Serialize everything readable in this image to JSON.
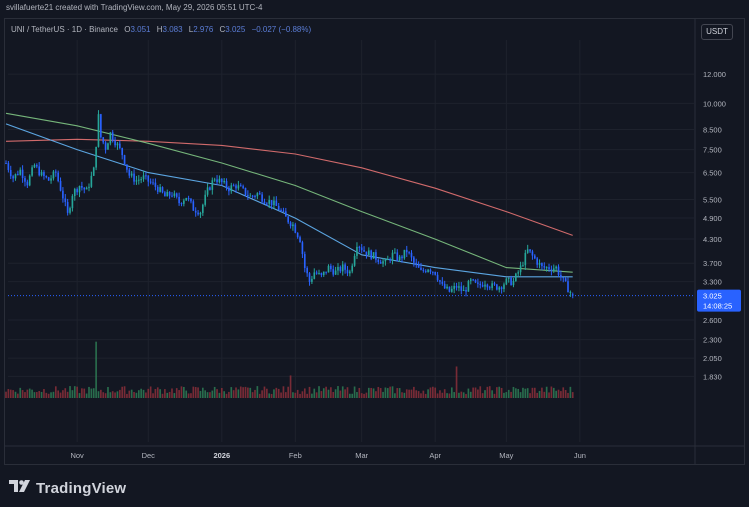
{
  "header": {
    "credit": "svillafuerte21 created with TradingView.com, May 29, 2026 05:51 UTC-4"
  },
  "legend": {
    "symbol": "UNI / TetherUS · 1D · Binance",
    "o_label": "O",
    "o_value": "3.051",
    "h_label": "H",
    "h_value": "3.083",
    "l_label": "L",
    "l_value": "2.976",
    "c_label": "C",
    "c_value": "3.025",
    "change": "−0.027 (−0.88%)"
  },
  "currency_button": "USDT",
  "brand": {
    "name": "TradingView",
    "logo_icon": "tradingview-logo-icon"
  },
  "colors": {
    "up": "#26a69a",
    "down": "#2962ff",
    "ma_long": "#e57373",
    "ma_mid": "#81c784",
    "ma_short": "#64b5f6",
    "vol_up": "#2e7d55",
    "vol_down": "#8b2f3a",
    "price_tag": "#2962ff",
    "countdown_tag": "#2962ff"
  },
  "chart_data": {
    "type": "candlestick",
    "symbol": "UNI / TetherUS",
    "interval": "1D",
    "exchange": "Binance",
    "y_scale": "log",
    "ylim": [
      1.6,
      14.2
    ],
    "y_ticks": [
      "12.000",
      "10.000",
      "8.500",
      "7.500",
      "6.500",
      "5.500",
      "4.900",
      "4.300",
      "3.700",
      "3.300",
      "2.600",
      "2.300",
      "2.050",
      "1.830"
    ],
    "x_ticks": [
      "Nov",
      "Dec",
      "2026",
      "Feb",
      "Mar",
      "Apr",
      "May",
      "Jun"
    ],
    "x_tick_dates": [
      "2025-11-01",
      "2025-12-01",
      "2026-01-01",
      "2026-02-01",
      "2026-03-01",
      "2026-04-01",
      "2026-05-01",
      "2026-06-01"
    ],
    "x_range": [
      "2025-10-02",
      "2026-07-01"
    ],
    "last_price": "3.025",
    "countdown": "14:08:25",
    "grid": true,
    "price_points": [
      [
        "2025-10-02",
        6.9
      ],
      [
        "2025-10-05",
        6.3
      ],
      [
        "2025-10-08",
        6.6
      ],
      [
        "2025-10-11",
        6.1
      ],
      [
        "2025-10-14",
        6.8
      ],
      [
        "2025-10-17",
        6.4
      ],
      [
        "2025-10-20",
        6.2
      ],
      [
        "2025-10-23",
        6.5
      ],
      [
        "2025-10-26",
        5.6
      ],
      [
        "2025-10-28",
        5.0
      ],
      [
        "2025-10-30",
        5.7
      ],
      [
        "2025-11-02",
        6.0
      ],
      [
        "2025-11-05",
        5.8
      ],
      [
        "2025-11-08",
        6.6
      ],
      [
        "2025-11-10",
        9.2
      ],
      [
        "2025-11-11",
        8.1
      ],
      [
        "2025-11-13",
        7.6
      ],
      [
        "2025-11-15",
        8.3
      ],
      [
        "2025-11-17",
        7.9
      ],
      [
        "2025-11-20",
        7.3
      ],
      [
        "2025-11-23",
        6.4
      ],
      [
        "2025-11-26",
        6.2
      ],
      [
        "2025-11-29",
        6.3
      ],
      [
        "2025-12-02",
        6.1
      ],
      [
        "2025-12-05",
        5.9
      ],
      [
        "2025-12-08",
        5.6
      ],
      [
        "2025-12-11",
        5.7
      ],
      [
        "2025-12-14",
        5.4
      ],
      [
        "2025-12-17",
        5.6
      ],
      [
        "2025-12-20",
        5.2
      ],
      [
        "2025-12-23",
        5.1
      ],
      [
        "2025-12-26",
        5.8
      ],
      [
        "2025-12-29",
        6.3
      ],
      [
        "2026-01-01",
        6.1
      ],
      [
        "2026-01-04",
        5.9
      ],
      [
        "2026-01-07",
        6.0
      ],
      [
        "2026-01-10",
        5.8
      ],
      [
        "2026-01-13",
        5.6
      ],
      [
        "2026-01-16",
        5.7
      ],
      [
        "2026-01-19",
        5.5
      ],
      [
        "2026-01-22",
        5.4
      ],
      [
        "2026-01-25",
        5.2
      ],
      [
        "2026-01-28",
        4.9
      ],
      [
        "2026-01-31",
        4.7
      ],
      [
        "2026-02-03",
        4.3
      ],
      [
        "2026-02-05",
        3.6
      ],
      [
        "2026-02-07",
        3.3
      ],
      [
        "2026-02-09",
        3.5
      ],
      [
        "2026-02-12",
        3.4
      ],
      [
        "2026-02-15",
        3.6
      ],
      [
        "2026-02-18",
        3.5
      ],
      [
        "2026-02-21",
        3.6
      ],
      [
        "2026-02-24",
        3.5
      ],
      [
        "2026-02-27",
        4.2
      ],
      [
        "2026-03-02",
        4.0
      ],
      [
        "2026-03-05",
        3.9
      ],
      [
        "2026-03-08",
        3.8
      ],
      [
        "2026-03-11",
        3.7
      ],
      [
        "2026-03-14",
        3.9
      ],
      [
        "2026-03-17",
        3.8
      ],
      [
        "2026-03-20",
        4.0
      ],
      [
        "2026-03-23",
        3.7
      ],
      [
        "2026-03-26",
        3.5
      ],
      [
        "2026-03-29",
        3.6
      ],
      [
        "2026-04-01",
        3.5
      ],
      [
        "2026-04-04",
        3.2
      ],
      [
        "2026-04-07",
        3.1
      ],
      [
        "2026-04-10",
        3.2
      ],
      [
        "2026-04-13",
        3.1
      ],
      [
        "2026-04-16",
        3.3
      ],
      [
        "2026-04-19",
        3.2
      ],
      [
        "2026-04-22",
        3.3
      ],
      [
        "2026-04-25",
        3.2
      ],
      [
        "2026-04-28",
        3.2
      ],
      [
        "2026-05-01",
        3.3
      ],
      [
        "2026-05-04",
        3.3
      ],
      [
        "2026-05-07",
        3.6
      ],
      [
        "2026-05-10",
        4.0
      ],
      [
        "2026-05-13",
        3.8
      ],
      [
        "2026-05-16",
        3.6
      ],
      [
        "2026-05-19",
        3.6
      ],
      [
        "2026-05-22",
        3.6
      ],
      [
        "2026-05-25",
        3.3
      ],
      [
        "2026-05-28",
        3.1
      ],
      [
        "2026-05-29",
        3.025
      ]
    ],
    "ma_long": [
      [
        "2025-10-02",
        7.9
      ],
      [
        "2025-11-01",
        8.0
      ],
      [
        "2025-12-01",
        7.9
      ],
      [
        "2026-01-01",
        7.7
      ],
      [
        "2026-02-01",
        7.3
      ],
      [
        "2026-03-01",
        6.7
      ],
      [
        "2026-04-01",
        5.9
      ],
      [
        "2026-05-01",
        5.1
      ],
      [
        "2026-05-29",
        4.4
      ]
    ],
    "ma_mid": [
      [
        "2025-10-02",
        9.4
      ],
      [
        "2025-11-01",
        8.7
      ],
      [
        "2025-12-01",
        7.8
      ],
      [
        "2026-01-01",
        6.9
      ],
      [
        "2026-02-01",
        6.0
      ],
      [
        "2026-03-01",
        5.1
      ],
      [
        "2026-04-01",
        4.3
      ],
      [
        "2026-05-01",
        3.6
      ],
      [
        "2026-05-29",
        3.5
      ]
    ],
    "ma_short": [
      [
        "2025-10-02",
        8.8
      ],
      [
        "2025-11-01",
        7.5
      ],
      [
        "2025-12-01",
        6.5
      ],
      [
        "2026-01-01",
        6.0
      ],
      [
        "2026-02-01",
        4.9
      ],
      [
        "2026-03-01",
        3.9
      ],
      [
        "2026-04-01",
        3.6
      ],
      [
        "2026-05-01",
        3.4
      ],
      [
        "2026-05-29",
        3.4
      ]
    ]
  }
}
